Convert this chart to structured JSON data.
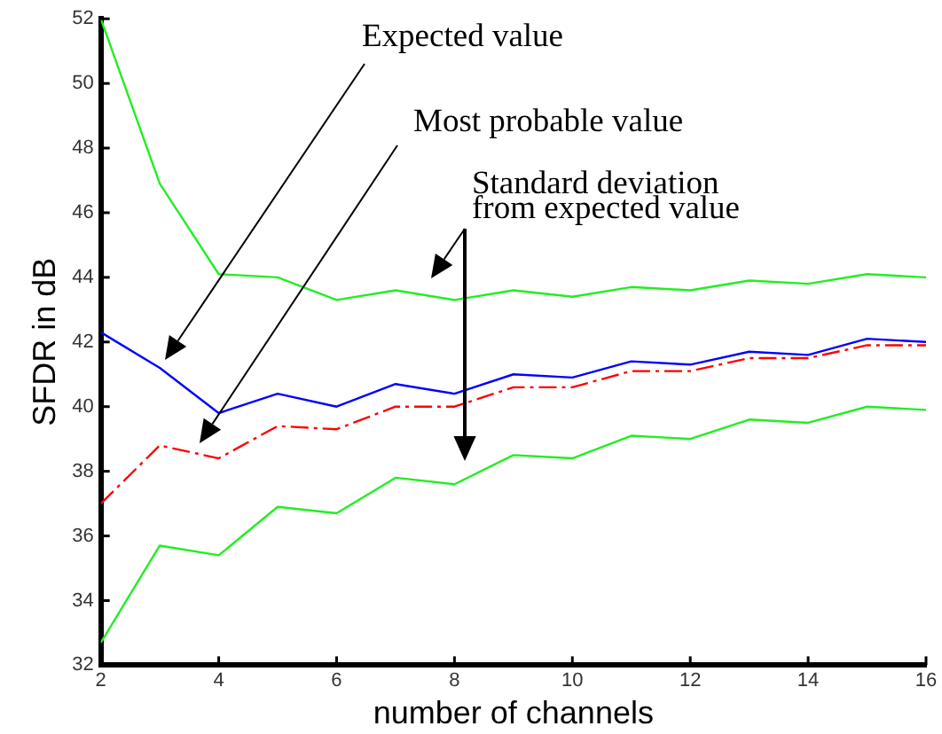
{
  "chart_data": {
    "type": "line",
    "xlabel": "number of channels",
    "ylabel": "SFDR in dB",
    "x": [
      2,
      3,
      4,
      5,
      6,
      7,
      8,
      9,
      10,
      11,
      12,
      13,
      14,
      15,
      16
    ],
    "series": [
      {
        "color": "#22ee22",
        "values": [
          52.0,
          46.9,
          44.1,
          44.0,
          43.3,
          43.6,
          43.3,
          43.6,
          43.4,
          43.7,
          43.6,
          43.9,
          43.8,
          44.1,
          44.0
        ]
      },
      {
        "color": "#0000ff",
        "values": [
          42.3,
          41.2,
          39.8,
          40.4,
          40.0,
          40.7,
          40.4,
          41.0,
          40.9,
          41.4,
          41.3,
          41.7,
          41.6,
          42.1,
          42.0
        ]
      },
      {
        "color": "#ff0000",
        "line_style": "dashed",
        "values": [
          37.0,
          38.8,
          38.4,
          39.4,
          39.3,
          40.0,
          40.0,
          40.6,
          40.6,
          41.1,
          41.1,
          41.5,
          41.5,
          41.9,
          41.9
        ]
      },
      {
        "color": "#22ee22",
        "values": [
          32.7,
          35.7,
          35.4,
          36.9,
          36.7,
          37.8,
          37.6,
          38.5,
          38.4,
          39.1,
          39.0,
          39.6,
          39.5,
          40.0,
          39.9
        ]
      }
    ],
    "xlim": [
      2,
      16
    ],
    "xticks": [
      2,
      4,
      6,
      8,
      10,
      12,
      14,
      16
    ],
    "ylim": [
      32,
      52
    ],
    "yticks": [
      32,
      34,
      36,
      38,
      40,
      42,
      44,
      46,
      48,
      50,
      52
    ],
    "annotations": [
      "Expected value",
      "Most probable value",
      "Standard deviation from expected value"
    ]
  }
}
